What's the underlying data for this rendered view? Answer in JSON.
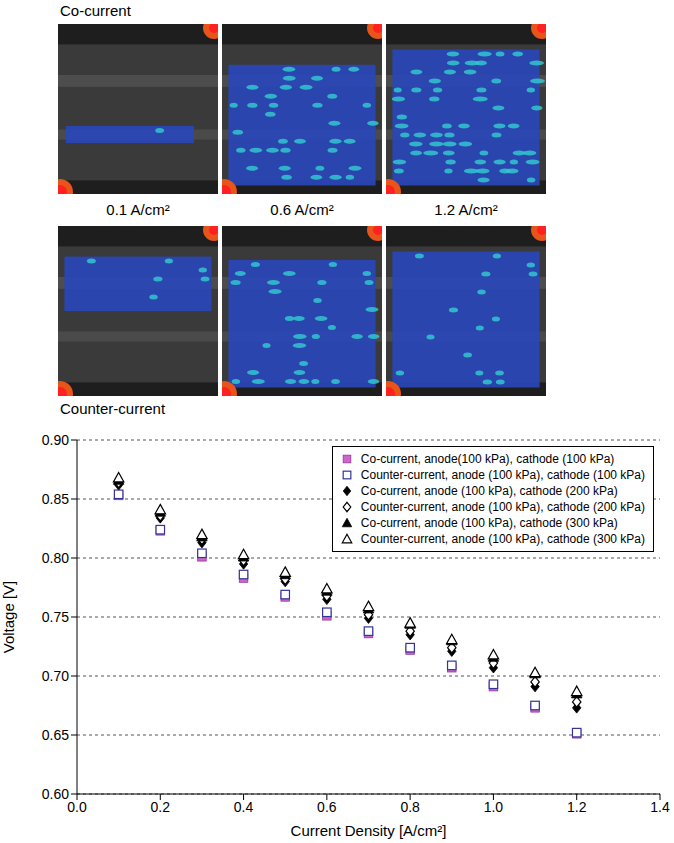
{
  "panels": {
    "row_labels": [
      "Co-current",
      "Counter-current"
    ],
    "column_labels": [
      "0.1 A/cm²",
      "0.6 A/cm²",
      "1.2 A/cm²"
    ]
  },
  "chart_data": {
    "type": "scatter",
    "x_label": "Current Density [A/cm²]",
    "y_label": "Voltage [V]",
    "x": [
      0.1,
      0.2,
      0.3,
      0.4,
      0.5,
      0.6,
      0.7,
      0.8,
      0.9,
      1.0,
      1.1,
      1.2
    ],
    "xlim": [
      0,
      1.4
    ],
    "xticks": [
      {
        "value": 0,
        "label": "0.0"
      },
      0.2,
      0.4,
      0.6,
      0.8,
      {
        "value": 1,
        "label": "1.0"
      },
      1.2,
      1.4
    ],
    "ylim": [
      0.6,
      0.9
    ],
    "yticks": [
      {
        "value": 0.6,
        "label": "0.60"
      },
      0.65,
      {
        "value": 0.7,
        "label": "0.70"
      },
      0.75,
      {
        "value": 0.8,
        "label": "0.80"
      },
      0.85,
      {
        "value": 0.9,
        "label": "0.90"
      }
    ],
    "grid": "y",
    "legend": "upper right",
    "series": [
      {
        "name": "Co-current, anode(100 kPa), cathode (100 kPa)",
        "color": "#cc66cc",
        "marker": "square",
        "values": [
          0.853,
          0.823,
          0.801,
          0.783,
          0.767,
          0.751,
          0.736,
          0.722,
          0.707,
          0.691,
          0.673,
          0.651
        ]
      },
      {
        "name": "Counter-current, anode (100 kPa), cathode (100 kPa)",
        "color": "#33339a",
        "marker": "square_open",
        "values": [
          0.854,
          0.824,
          0.804,
          0.786,
          0.769,
          0.754,
          0.738,
          0.724,
          0.709,
          0.693,
          0.675,
          0.652
        ]
      },
      {
        "name": "Co-current, anode (100 kPa), cathode (200 kPa)",
        "color": "#000000",
        "marker": "diamond",
        "values": [
          0.862,
          0.834,
          0.813,
          0.795,
          0.78,
          0.765,
          0.749,
          0.735,
          0.721,
          0.707,
          0.691,
          0.673
        ]
      },
      {
        "name": "Counter-current, anode (100 kPa), cathode (200 kPa)",
        "color": "#000000",
        "marker": "diamond_open",
        "values": [
          0.864,
          0.836,
          0.816,
          0.798,
          0.782,
          0.768,
          0.752,
          0.738,
          0.724,
          0.711,
          0.695,
          0.678
        ]
      },
      {
        "name": "Co-current, anode (100 kPa), cathode (300 kPa)",
        "color": "#000000",
        "marker": "triangle",
        "values": [
          0.866,
          0.839,
          0.818,
          0.801,
          0.786,
          0.772,
          0.757,
          0.744,
          0.73,
          0.716,
          0.702,
          0.685
        ]
      },
      {
        "name": "Counter-current, anode (100 kPa), cathode (300 kPa)",
        "color": "#000000",
        "marker": "triangle_open",
        "values": [
          0.868,
          0.841,
          0.82,
          0.803,
          0.788,
          0.774,
          0.759,
          0.745,
          0.731,
          0.718,
          0.703,
          0.687
        ]
      }
    ]
  }
}
